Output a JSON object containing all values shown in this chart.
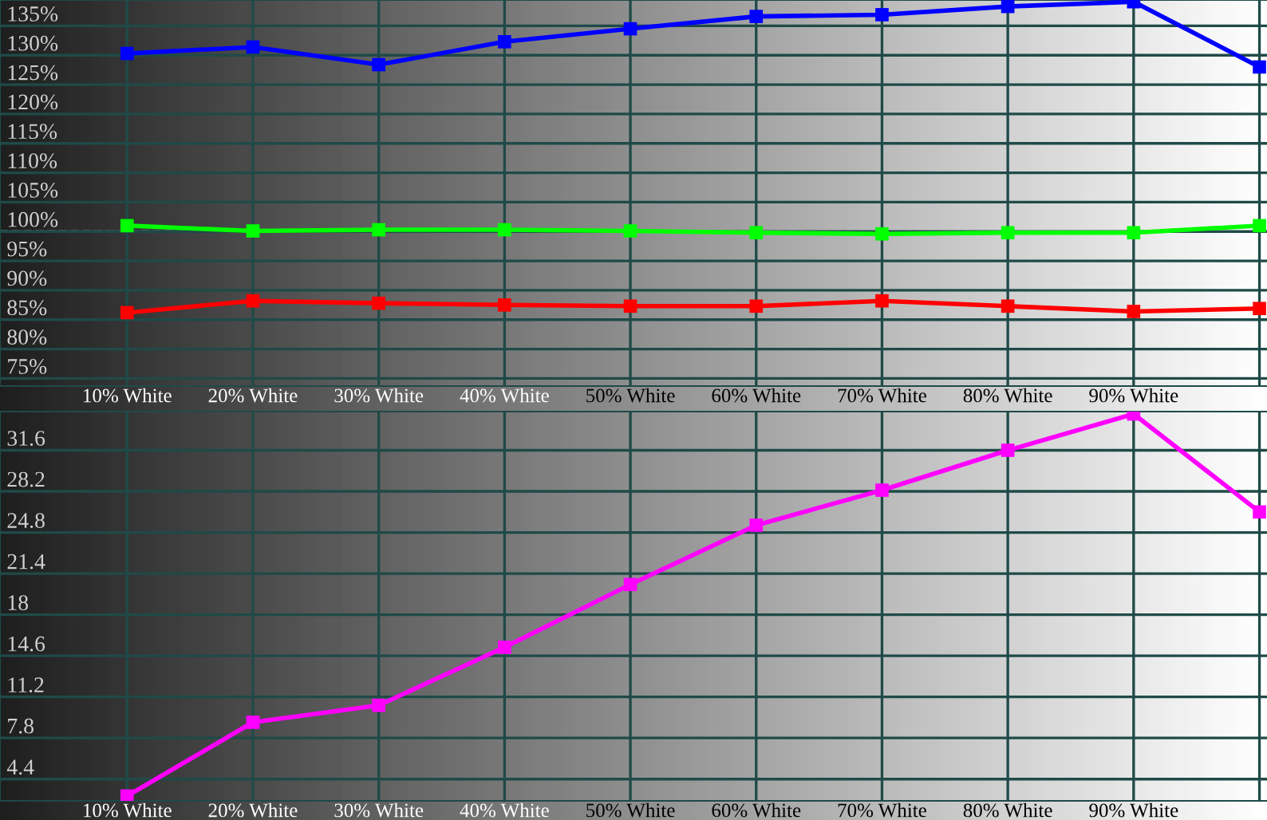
{
  "chart_data": [
    {
      "type": "line",
      "categories": [
        "10% White",
        "20% White",
        "30% White",
        "40% White",
        "50% White",
        "60% White",
        "70% White",
        "80% White",
        "90% White",
        null
      ],
      "series": [
        {
          "color": "#0000ff",
          "values": [
            130.3,
            131.4,
            128.4,
            132.3,
            134.5,
            136.6,
            136.9,
            138.3,
            139.1,
            128.0
          ]
        },
        {
          "color": "#00ff00",
          "values": [
            101.0,
            100.1,
            100.3,
            100.3,
            100.1,
            99.8,
            99.6,
            99.8,
            99.8,
            101.0
          ]
        },
        {
          "color": "#ff0000",
          "values": [
            86.2,
            88.2,
            87.8,
            87.5,
            87.3,
            87.3,
            88.2,
            87.3,
            86.4,
            86.9
          ]
        }
      ],
      "ylim": [
        73.7,
        139.4
      ],
      "yticks": [
        {
          "value": 135,
          "label": "135%"
        },
        {
          "value": 130,
          "label": "130%"
        },
        {
          "value": 125,
          "label": "125%"
        },
        {
          "value": 120,
          "label": "120%"
        },
        {
          "value": 115,
          "label": "115%"
        },
        {
          "value": 110,
          "label": "110%"
        },
        {
          "value": 105,
          "label": "105%"
        },
        {
          "value": 100,
          "label": "100%"
        },
        {
          "value": 95,
          "label": "95%"
        },
        {
          "value": 90,
          "label": "90%"
        },
        {
          "value": 85,
          "label": "85%"
        },
        {
          "value": 80,
          "label": "80%"
        },
        {
          "value": 75,
          "label": "75%"
        }
      ],
      "ref_lines": [
        {
          "axis": "y",
          "value": 100,
          "color": "#ffffff",
          "line_style": "dashed"
        }
      ],
      "grid": true,
      "marker": "square",
      "line_style": "solid"
    },
    {
      "type": "line",
      "categories": [
        "10% White",
        "20% White",
        "30% White",
        "40% White",
        "50% White",
        "60% White",
        "70% White",
        "80% White",
        "90% White",
        null
      ],
      "series": [
        {
          "color": "#ff00ff",
          "values": [
            3.0,
            9.1,
            10.5,
            15.3,
            20.5,
            25.4,
            28.3,
            31.6,
            34.6,
            26.5
          ]
        }
      ],
      "ylim": [
        2.6,
        34.8
      ],
      "yticks": [
        31.6,
        28.2,
        24.8,
        21.4,
        18,
        14.6,
        11.2,
        7.8,
        4.4
      ],
      "grid": true,
      "marker": "square",
      "line_style": "solid"
    }
  ]
}
